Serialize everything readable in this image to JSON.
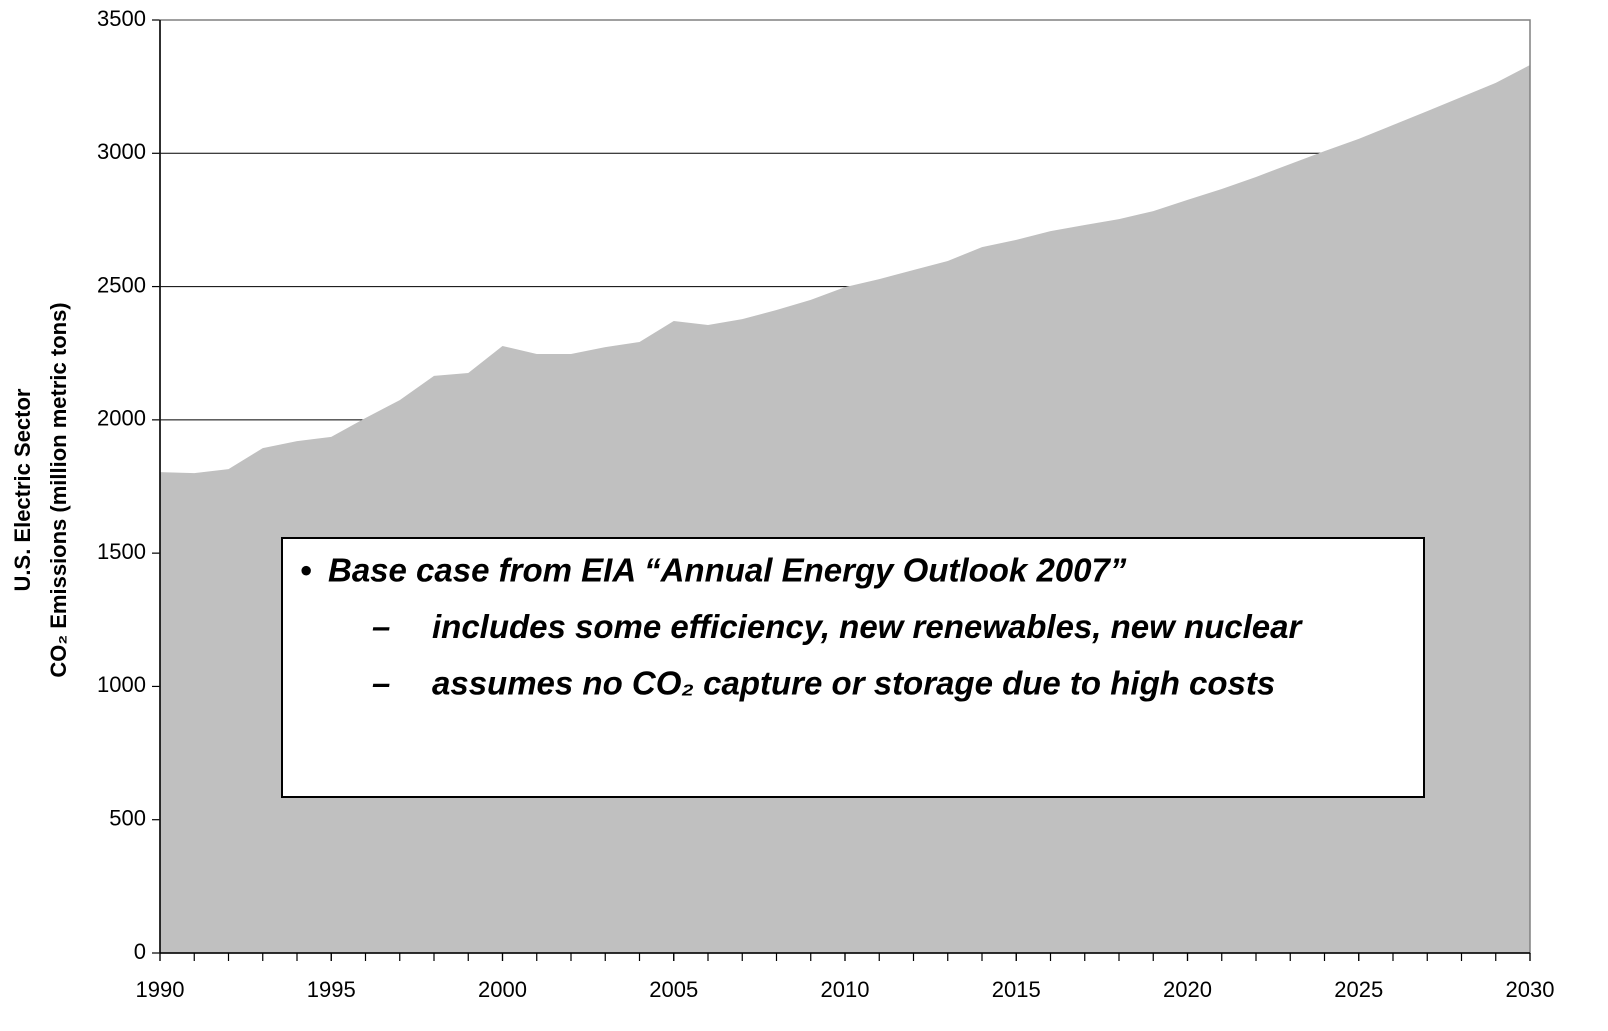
{
  "chart_data": {
    "type": "area",
    "y_label_lines": [
      "U.S. Electric Sector",
      "CO₂ Emissions (million metric tons)"
    ],
    "x": [
      1990,
      1991,
      1992,
      1993,
      1994,
      1995,
      1996,
      1997,
      1998,
      1999,
      2000,
      2001,
      2002,
      2003,
      2004,
      2005,
      2006,
      2007,
      2008,
      2009,
      2010,
      2011,
      2012,
      2013,
      2014,
      2015,
      2016,
      2017,
      2018,
      2019,
      2020,
      2021,
      2022,
      2023,
      2024,
      2025,
      2026,
      2027,
      2028,
      2029,
      2030
    ],
    "values": [
      1804,
      1800,
      1815,
      1894,
      1920,
      1936,
      2007,
      2074,
      2165,
      2176,
      2277,
      2247,
      2247,
      2273,
      2292,
      2371,
      2356,
      2378,
      2412,
      2450,
      2498,
      2528,
      2562,
      2596,
      2648,
      2675,
      2708,
      2731,
      2753,
      2783,
      2825,
      2866,
      2911,
      2960,
      3008,
      3054,
      3106,
      3158,
      3211,
      3264,
      3331
    ],
    "color": "#c0c0c0",
    "xlim": [
      1990,
      2030
    ],
    "xticks": [
      1990,
      1995,
      2000,
      2005,
      2010,
      2015,
      2020,
      2025,
      2030
    ],
    "ylim": [
      0,
      3500
    ],
    "yticks": [
      0,
      500,
      1000,
      1500,
      2000,
      2500,
      3000,
      3500
    ],
    "grid": true,
    "annotation": [
      {
        "marker": "•",
        "text": "Base case from EIA “Annual Energy Outlook 2007”"
      },
      {
        "marker": "–",
        "text": "includes some efficiency, new renewables, new nuclear"
      },
      {
        "marker": "–",
        "text": "assumes no CO₂ capture or storage due to high costs"
      }
    ]
  }
}
